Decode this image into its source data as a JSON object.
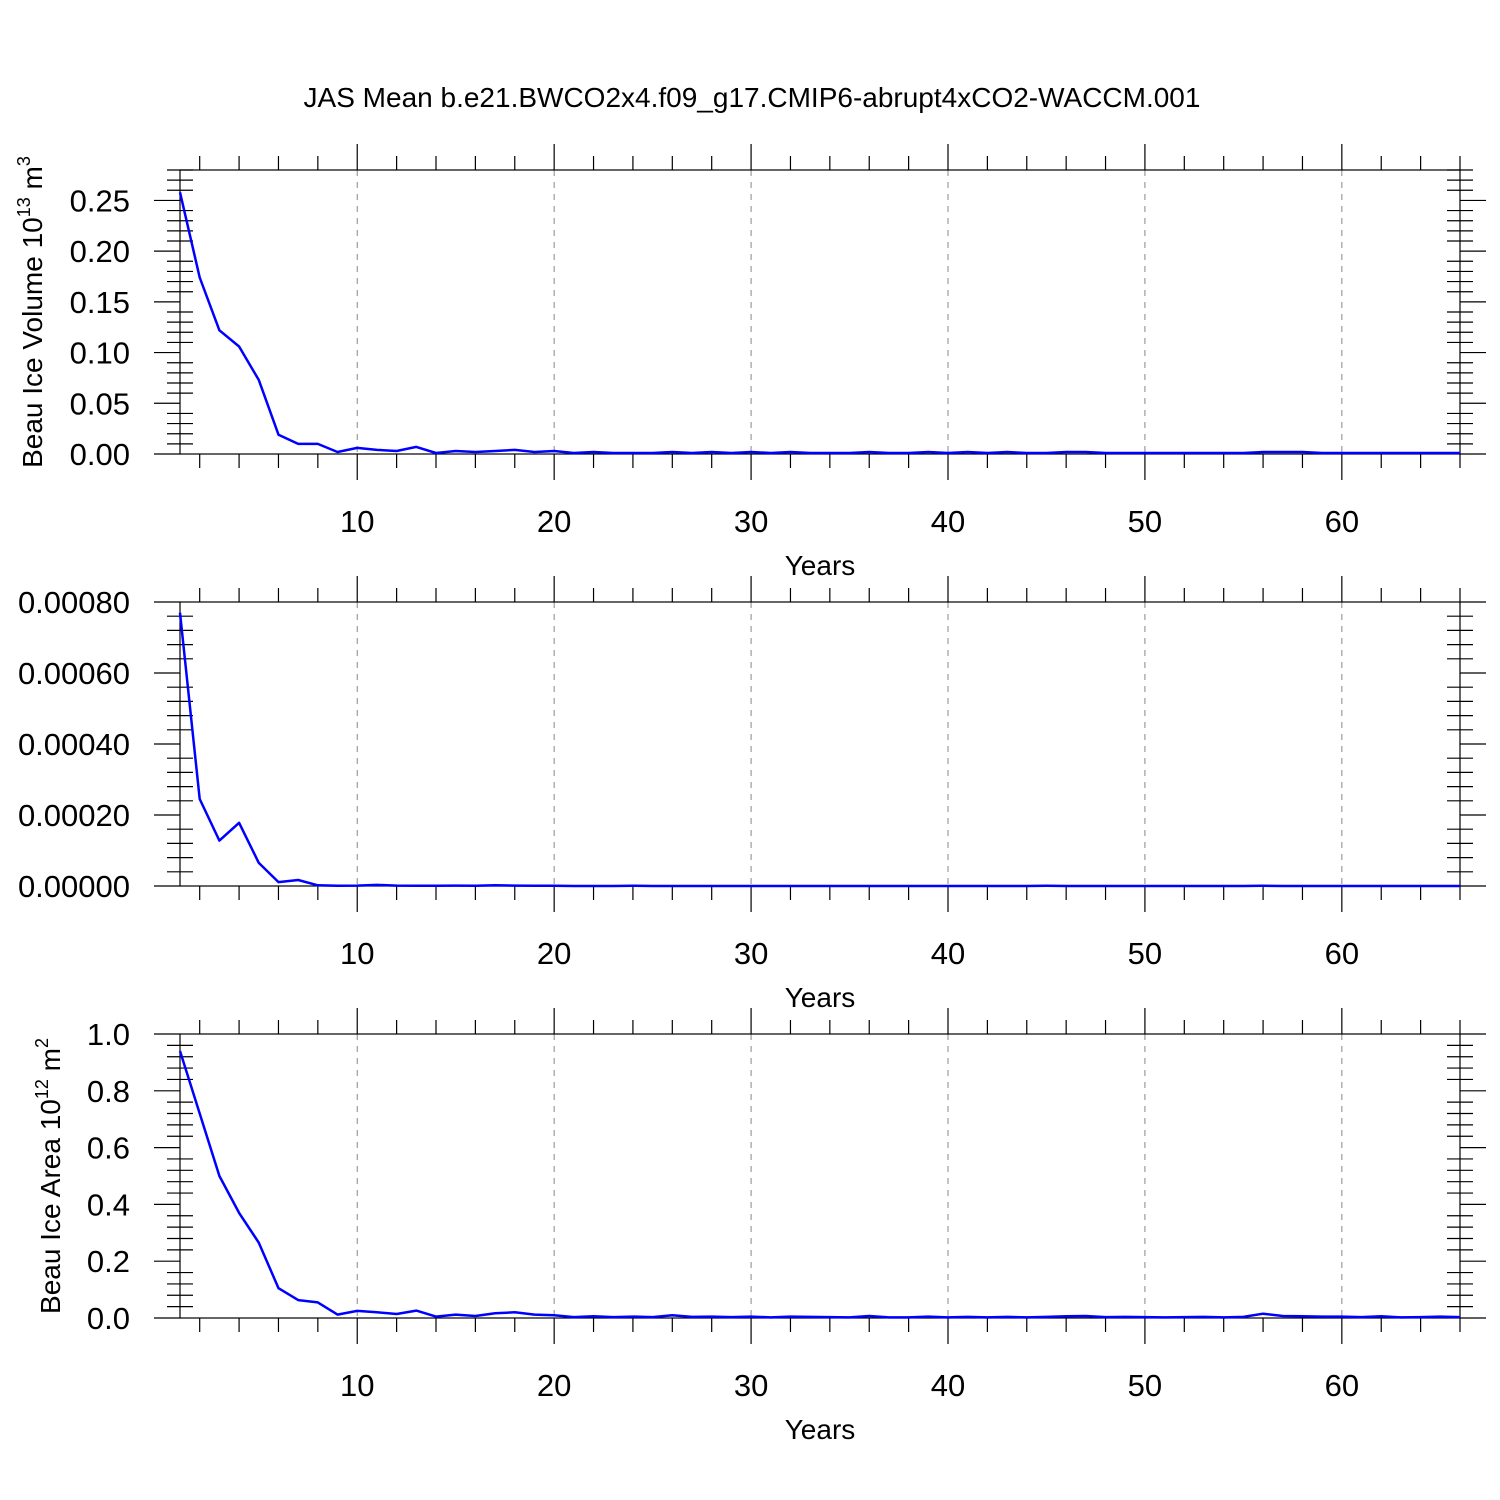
{
  "chart_data": [
    {
      "type": "line",
      "title": "JAS Mean b.e21.BWCO2x4.f09_g17.CMIP6-abrupt4xCO2-WACCM.001",
      "xlabel": "Years",
      "ylabel": "Beau Ice Volume 10",
      "ylabel_sup": "13",
      "ylabel_unit": " m",
      "ylabel_unit_sup": "3",
      "xlim": [
        1,
        66
      ],
      "ylim": [
        0,
        0.28
      ],
      "x_ticks": [
        10,
        20,
        30,
        40,
        50,
        60
      ],
      "x_tick_labels": [
        "10",
        "20",
        "30",
        "40",
        "50",
        "60"
      ],
      "y_ticks": [
        0,
        0.05,
        0.1,
        0.15,
        0.2,
        0.25
      ],
      "y_tick_labels": [
        "0.00",
        "0.05",
        "0.10",
        "0.15",
        "0.20",
        "0.25"
      ],
      "grid": "dashed vertical at major x ticks",
      "color": "#0000ff",
      "x": [
        1,
        2,
        3,
        4,
        5,
        6,
        7,
        8,
        9,
        10,
        11,
        12,
        13,
        14,
        15,
        16,
        17,
        18,
        19,
        20,
        21,
        22,
        23,
        24,
        25,
        26,
        27,
        28,
        29,
        30,
        31,
        32,
        33,
        34,
        35,
        36,
        37,
        38,
        39,
        40,
        41,
        42,
        43,
        44,
        45,
        46,
        47,
        48,
        49,
        50,
        51,
        52,
        53,
        54,
        55,
        56,
        57,
        58,
        59,
        60,
        61,
        62,
        63,
        64,
        65,
        66
      ],
      "values": [
        0.258,
        0.174,
        0.122,
        0.106,
        0.073,
        0.019,
        0.01,
        0.01,
        0.002,
        0.006,
        0.004,
        0.003,
        0.007,
        0.001,
        0.003,
        0.002,
        0.003,
        0.004,
        0.002,
        0.003,
        0.001,
        0.002,
        0.001,
        0.001,
        0.001,
        0.002,
        0.001,
        0.002,
        0.001,
        0.002,
        0.001,
        0.002,
        0.001,
        0.001,
        0.001,
        0.002,
        0.001,
        0.001,
        0.002,
        0.001,
        0.002,
        0.001,
        0.002,
        0.001,
        0.001,
        0.002,
        0.002,
        0.001,
        0.001,
        0.001,
        0.001,
        0.001,
        0.001,
        0.001,
        0.001,
        0.002,
        0.002,
        0.002,
        0.001,
        0.001,
        0.001,
        0.001,
        0.001,
        0.001,
        0.001,
        0.001
      ]
    },
    {
      "type": "line",
      "xlabel": "Years",
      "xlim": [
        1,
        66
      ],
      "ylim": [
        0,
        0.0008
      ],
      "x_ticks": [
        10,
        20,
        30,
        40,
        50,
        60
      ],
      "x_tick_labels": [
        "10",
        "20",
        "30",
        "40",
        "50",
        "60"
      ],
      "y_ticks": [
        0,
        0.0002,
        0.0004,
        0.0006,
        0.0008
      ],
      "y_tick_labels": [
        "0.00000",
        "0.00020",
        "0.00040",
        "0.00060",
        "0.00080"
      ],
      "grid": "dashed vertical at major x ticks",
      "color": "#0000ff",
      "x": [
        1,
        2,
        3,
        4,
        5,
        6,
        7,
        8,
        9,
        10,
        11,
        12,
        13,
        14,
        15,
        16,
        17,
        18,
        19,
        20,
        21,
        22,
        23,
        24,
        25,
        26,
        27,
        28,
        29,
        30,
        31,
        32,
        33,
        34,
        35,
        36,
        37,
        38,
        39,
        40,
        41,
        42,
        43,
        44,
        45,
        46,
        47,
        48,
        49,
        50,
        51,
        52,
        53,
        54,
        55,
        56,
        57,
        58,
        59,
        60,
        61,
        62,
        63,
        64,
        65,
        66
      ],
      "values": [
        0.00077,
        0.000245,
        0.000128,
        0.000178,
        6.5e-05,
        1.1e-05,
        1.7e-05,
        2e-06,
        5e-07,
        1e-06,
        3e-06,
        1e-06,
        8e-07,
        5e-07,
        1e-06,
        5e-07,
        2e-06,
        1e-06,
        5e-07,
        5e-07,
        0,
        0,
        0,
        8e-07,
        0,
        0,
        0,
        0,
        0,
        0,
        0,
        0,
        0,
        0,
        0,
        0,
        0,
        0,
        0,
        0,
        0,
        0,
        0,
        0,
        5e-07,
        0,
        0,
        0,
        0,
        0,
        0,
        0,
        0,
        0,
        0,
        5e-07,
        0,
        0,
        0,
        0,
        0,
        0,
        0,
        0,
        0,
        0
      ]
    },
    {
      "type": "line",
      "xlabel": "Years",
      "ylabel": "Beau Ice Area 10",
      "ylabel_sup": "12",
      "ylabel_unit": " m",
      "ylabel_unit_sup": "2",
      "xlim": [
        1,
        66
      ],
      "ylim": [
        0,
        1.0
      ],
      "x_ticks": [
        10,
        20,
        30,
        40,
        50,
        60
      ],
      "x_tick_labels": [
        "10",
        "20",
        "30",
        "40",
        "50",
        "60"
      ],
      "y_ticks": [
        0,
        0.2,
        0.4,
        0.6,
        0.8,
        1.0
      ],
      "y_tick_labels": [
        "0.0",
        "0.2",
        "0.4",
        "0.6",
        "0.8",
        "1.0"
      ],
      "grid": "dashed vertical at major x ticks",
      "color": "#0000ff",
      "x": [
        1,
        2,
        3,
        4,
        5,
        6,
        7,
        8,
        9,
        10,
        11,
        12,
        13,
        14,
        15,
        16,
        17,
        18,
        19,
        20,
        21,
        22,
        23,
        24,
        25,
        26,
        27,
        28,
        29,
        30,
        31,
        32,
        33,
        34,
        35,
        36,
        37,
        38,
        39,
        40,
        41,
        42,
        43,
        44,
        45,
        46,
        47,
        48,
        49,
        50,
        51,
        52,
        53,
        54,
        55,
        56,
        57,
        58,
        59,
        60,
        61,
        62,
        63,
        64,
        65,
        66
      ],
      "values": [
        0.94,
        0.72,
        0.5,
        0.37,
        0.265,
        0.105,
        0.063,
        0.055,
        0.012,
        0.025,
        0.02,
        0.014,
        0.026,
        0.005,
        0.012,
        0.007,
        0.017,
        0.02,
        0.012,
        0.01,
        0.003,
        0.006,
        0.003,
        0.005,
        0.003,
        0.01,
        0.004,
        0.005,
        0.003,
        0.005,
        0.002,
        0.005,
        0.004,
        0.003,
        0.002,
        0.007,
        0.002,
        0.002,
        0.005,
        0.002,
        0.004,
        0.002,
        0.004,
        0.002,
        0.004,
        0.006,
        0.007,
        0.003,
        0.004,
        0.003,
        0.002,
        0.003,
        0.004,
        0.002,
        0.004,
        0.015,
        0.007,
        0.006,
        0.005,
        0.005,
        0.003,
        0.006,
        0.002,
        0.003,
        0.005,
        0.003
      ]
    }
  ]
}
